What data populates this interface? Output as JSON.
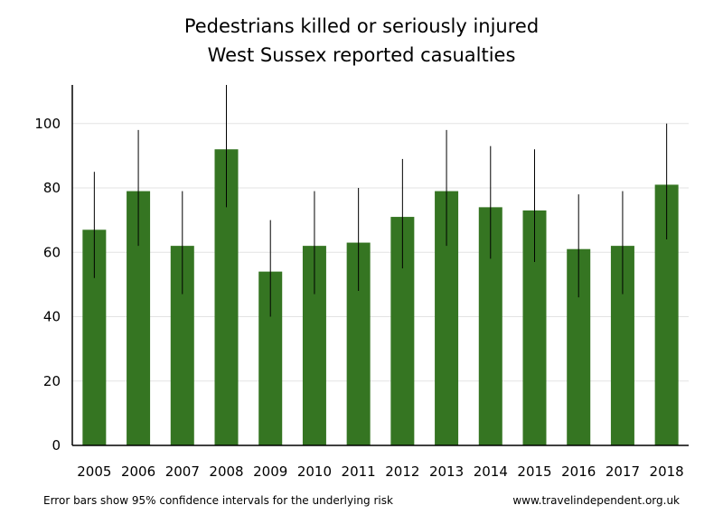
{
  "chart_data": {
    "type": "bar",
    "title": "Pedestrians killed or seriously injured",
    "subtitle": "West Sussex reported casualties",
    "categories": [
      "2005",
      "2006",
      "2007",
      "2008",
      "2009",
      "2010",
      "2011",
      "2012",
      "2013",
      "2014",
      "2015",
      "2016",
      "2017",
      "2018"
    ],
    "values": [
      67,
      79,
      62,
      92,
      54,
      62,
      63,
      71,
      79,
      74,
      73,
      61,
      62,
      81
    ],
    "error_low": [
      52,
      62,
      47,
      74,
      40,
      47,
      48,
      55,
      62,
      58,
      57,
      46,
      47,
      64
    ],
    "error_high": [
      85,
      98,
      79,
      113,
      70,
      79,
      80,
      89,
      98,
      93,
      92,
      78,
      79,
      100
    ],
    "ylim": [
      0,
      112
    ],
    "yticks": [
      0,
      20,
      40,
      60,
      80,
      100
    ],
    "xlabel": "",
    "ylabel": "",
    "grid": true,
    "bar_color": "#357522",
    "grid_color": "#e3e3e3"
  },
  "footnote_left": "Error bars show 95% confidence intervals for the underlying risk",
  "footnote_right": "www.travelindependent.org.uk"
}
